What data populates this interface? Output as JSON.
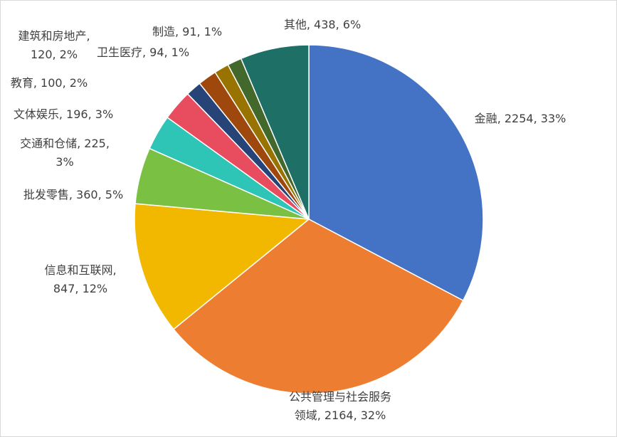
{
  "chart_data": {
    "type": "pie",
    "categories": [
      "金融",
      "公共管理与社会服务领域",
      "信息和互联网",
      "批发零售",
      "交通和仓储",
      "文体娱乐",
      "教育",
      "建筑和房地产",
      "卫生医疗",
      "制造",
      "其他"
    ],
    "values": [
      2254,
      2164,
      847,
      360,
      225,
      196,
      100,
      120,
      94,
      91,
      438
    ],
    "value_labels": [
      "2254, 33%",
      "2164, 32%",
      "847, 12%",
      "360, 5%",
      "225, 3%",
      "196, 3%",
      "100, 2%",
      "120, 2%",
      "94, 1%",
      "91, 1%",
      "438, 6%"
    ],
    "colors": [
      "#4472C4",
      "#ED7D31",
      "#F2B800",
      "#7AC143",
      "#2EC4B6",
      "#E84C5F",
      "#264478",
      "#9E480E",
      "#997300",
      "#43682B",
      "#1E7066"
    ]
  }
}
